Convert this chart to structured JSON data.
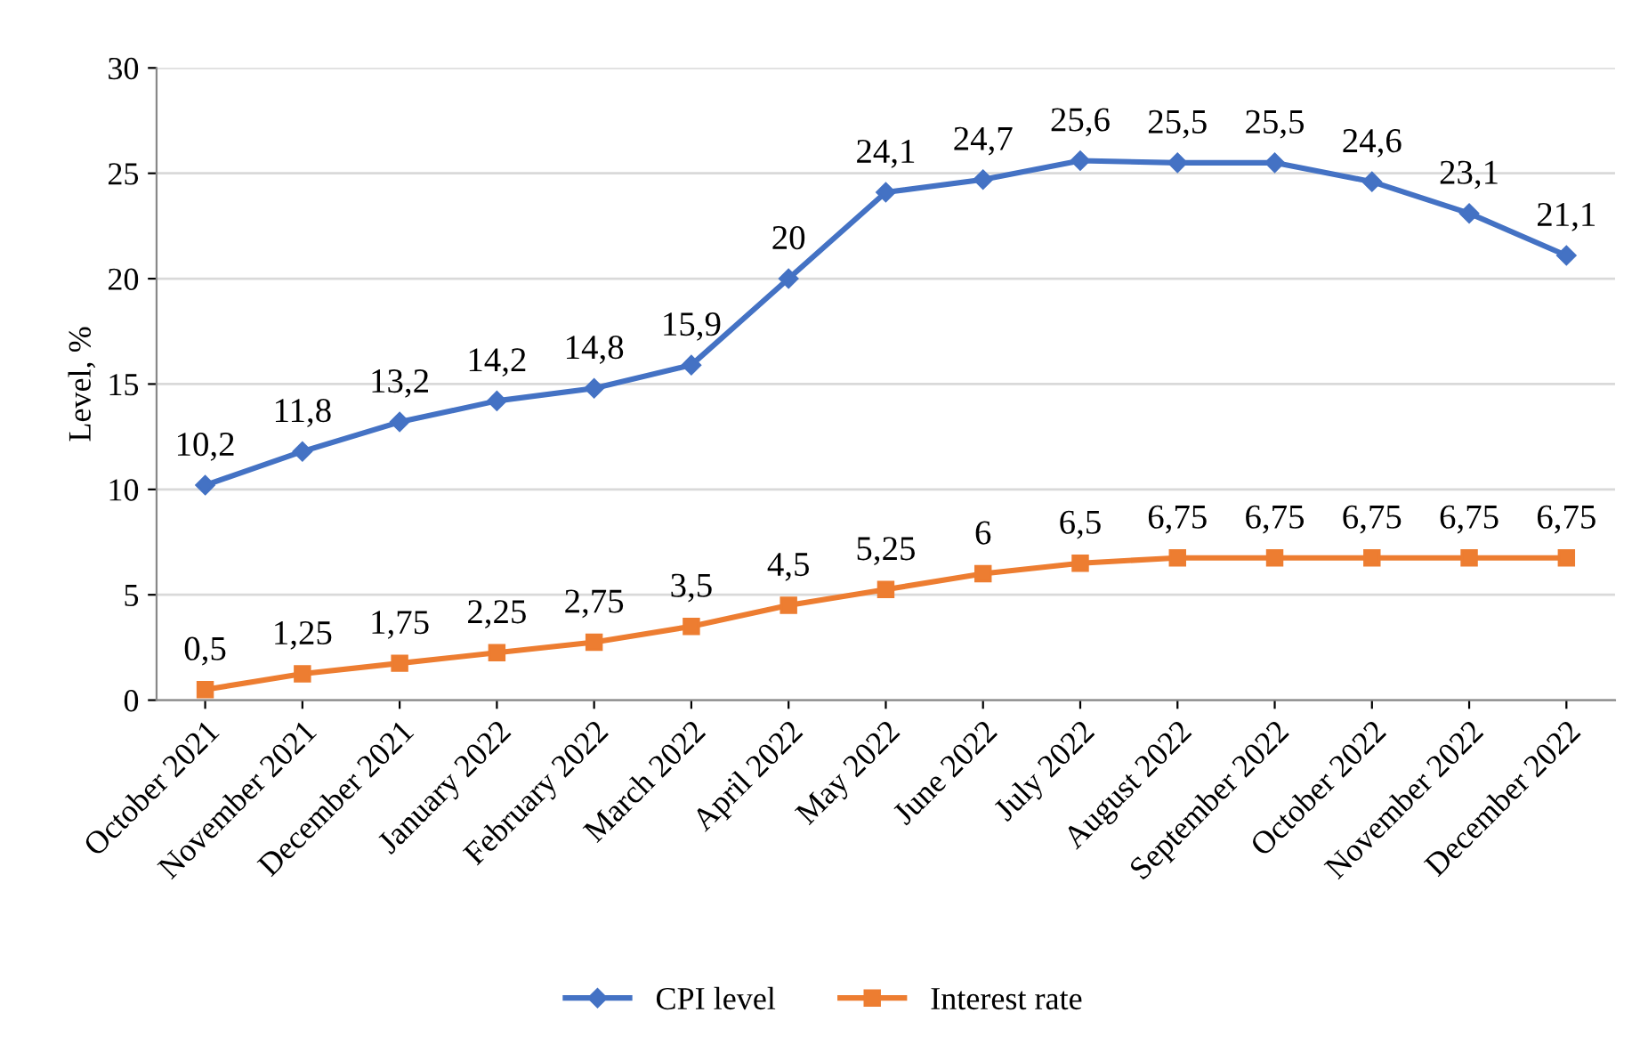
{
  "chart_data": {
    "type": "line",
    "ylabel": "Level, %",
    "categories": [
      "October 2021",
      "November 2021",
      "December 2021",
      "January 2022",
      "February 2022",
      "March 2022",
      "April 2022",
      "May 2022",
      "June 2022",
      "July 2022",
      "August 2022",
      "September 2022",
      "October 2022",
      "November 2022",
      "December 2022"
    ],
    "series": [
      {
        "name": "CPI level",
        "color": "#4472c4",
        "marker": "diamond",
        "values": [
          10.2,
          11.8,
          13.2,
          14.2,
          14.8,
          15.9,
          20,
          24.1,
          24.7,
          25.6,
          25.5,
          25.5,
          24.6,
          23.1,
          21.1
        ],
        "value_labels": [
          "10,2",
          "11,8",
          "13,2",
          "14,2",
          "14,8",
          "15,9",
          "20",
          "24,1",
          "24,7",
          "25,6",
          "25,5",
          "25,5",
          "24,6",
          "23,1",
          "21,1"
        ]
      },
      {
        "name": "Interest rate",
        "color": "#ed7d31",
        "marker": "square",
        "values": [
          0.5,
          1.25,
          1.75,
          2.25,
          2.75,
          3.5,
          4.5,
          5.25,
          6,
          6.5,
          6.75,
          6.75,
          6.75,
          6.75,
          6.75
        ],
        "value_labels": [
          "0,5",
          "1,25",
          "1,75",
          "2,25",
          "2,75",
          "3,5",
          "4,5",
          "5,25",
          "6",
          "6,5",
          "6,75",
          "6,75",
          "6,75",
          "6,75",
          "6,75"
        ]
      }
    ],
    "ylim": [
      0,
      30
    ],
    "yticks": [
      0,
      5,
      10,
      15,
      20,
      25,
      30
    ],
    "grid": "y",
    "legend": "bottom",
    "line_style": "solid"
  }
}
